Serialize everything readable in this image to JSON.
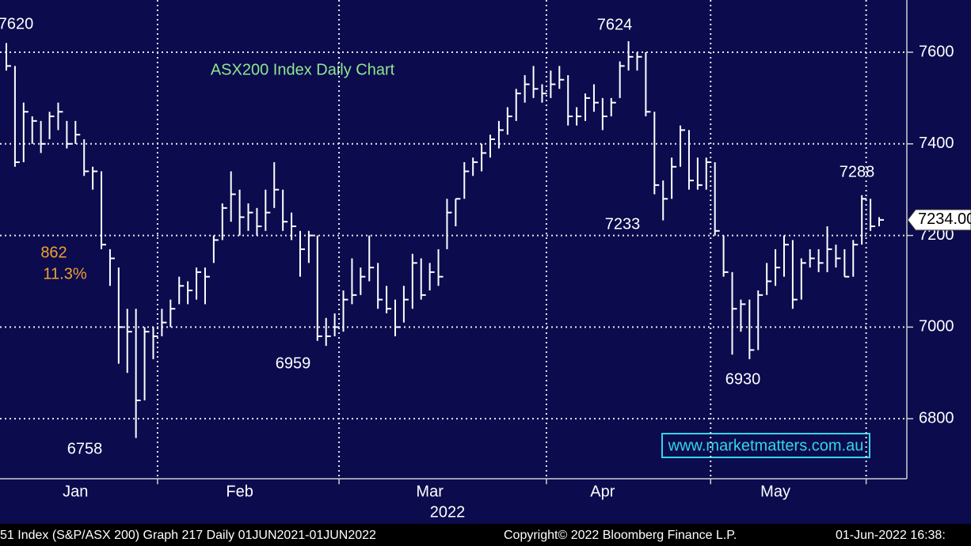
{
  "chart_data": {
    "type": "ohlc",
    "title": "ASX200 Index Daily Chart",
    "color": "#ffffff",
    "background": "#0b0b4e",
    "grid": true,
    "categories": [
      null,
      null,
      null,
      null,
      null,
      null,
      null,
      null,
      "Jan",
      null,
      null,
      null,
      null,
      null,
      null,
      null,
      null,
      null,
      null,
      null,
      null,
      null,
      null,
      null,
      null,
      null,
      null,
      "Feb",
      null,
      null,
      null,
      null,
      null,
      null,
      null,
      null,
      null,
      null,
      null,
      null,
      null,
      null,
      null,
      null,
      null,
      null,
      null,
      null,
      null,
      "Mar",
      null,
      null,
      null,
      null,
      null,
      null,
      null,
      null,
      null,
      null,
      null,
      null,
      null,
      null,
      null,
      null,
      null,
      null,
      null,
      "Apr",
      null,
      null,
      null,
      null,
      null,
      null,
      null,
      null,
      null,
      null,
      null,
      null,
      null,
      null,
      null,
      null,
      null,
      null,
      null,
      "May",
      null,
      null,
      null,
      null,
      null,
      null,
      null,
      null,
      null,
      null,
      null,
      null
    ],
    "x_grid_after": [
      17,
      38,
      62,
      81,
      99
    ],
    "year_label": "2022",
    "high": [
      7620,
      7570,
      7490,
      7460,
      7450,
      7470,
      7490,
      7450,
      7450,
      7410,
      7350,
      7340,
      7170,
      7130,
      7040,
      7040,
      7000,
      7000,
      7040,
      7060,
      7110,
      7100,
      7130,
      7130,
      7200,
      7270,
      7340,
      7300,
      7270,
      7260,
      7300,
      7360,
      7300,
      7250,
      7210,
      7210,
      7200,
      7020,
      7030,
      7080,
      7150,
      7130,
      7200,
      7140,
      7090,
      7060,
      7090,
      7160,
      7150,
      7140,
      7170,
      7280,
      7280,
      7360,
      7370,
      7400,
      7420,
      7450,
      7480,
      7520,
      7550,
      7570,
      7530,
      7560,
      7570,
      7550,
      7480,
      7510,
      7530,
      7500,
      7500,
      7580,
      7624,
      7600,
      7600,
      7470,
      7320,
      7370,
      7440,
      7430,
      7370,
      7370,
      7360,
      7200,
      7120,
      7060,
      7060,
      7080,
      7140,
      7170,
      7200,
      7190,
      7150,
      7170,
      7170,
      7220,
      7180,
      7170,
      7190,
      7288,
      7280,
      7240
    ],
    "low": [
      7560,
      7350,
      7360,
      7400,
      7380,
      7410,
      7430,
      7390,
      7400,
      7330,
      7300,
      7170,
      7090,
      6920,
      6900,
      6758,
      6840,
      6930,
      6980,
      7000,
      7050,
      7050,
      7060,
      7050,
      7140,
      7190,
      7230,
      7200,
      7210,
      7200,
      7210,
      7260,
      7210,
      7190,
      7110,
      7140,
      6970,
      6959,
      6980,
      6990,
      7050,
      7070,
      7100,
      7040,
      7030,
      6980,
      7010,
      7040,
      7060,
      7080,
      7090,
      7170,
      7220,
      7280,
      7330,
      7340,
      7370,
      7390,
      7420,
      7450,
      7490,
      7500,
      7490,
      7500,
      7520,
      7440,
      7440,
      7450,
      7470,
      7430,
      7460,
      7500,
      7560,
      7560,
      7460,
      7290,
      7233,
      7280,
      7350,
      7300,
      7300,
      7300,
      7200,
      7110,
      6940,
      6990,
      6930,
      6950,
      7070,
      7090,
      7110,
      7040,
      7060,
      7130,
      7120,
      7120,
      7130,
      7110,
      7110,
      7180,
      7210,
      7220
    ],
    "close": [
      7570,
      7360,
      7470,
      7450,
      7400,
      7460,
      7470,
      7400,
      7420,
      7340,
      7340,
      7180,
      7150,
      7000,
      6990,
      6840,
      6990,
      6980,
      7010,
      7040,
      7090,
      7080,
      7120,
      7110,
      7190,
      7260,
      7290,
      7240,
      7250,
      7220,
      7250,
      7300,
      7230,
      7220,
      7170,
      7200,
      6980,
      6980,
      7000,
      7060,
      7070,
      7110,
      7130,
      7060,
      7040,
      7000,
      7060,
      7140,
      7070,
      7120,
      7110,
      7250,
      7280,
      7340,
      7360,
      7380,
      7410,
      7430,
      7460,
      7510,
      7530,
      7520,
      7510,
      7530,
      7540,
      7460,
      7460,
      7500,
      7490,
      7460,
      7490,
      7570,
      7590,
      7590,
      7470,
      7310,
      7280,
      7350,
      7430,
      7320,
      7310,
      7360,
      7210,
      7120,
      7040,
      7050,
      6950,
      7070,
      7100,
      7130,
      7180,
      7060,
      7140,
      7150,
      7140,
      7170,
      7150,
      7110,
      7180,
      7280,
      7220,
      7234
    ],
    "ylim": [
      6669,
      7714
    ],
    "yticks": [
      6800,
      7000,
      7200,
      7400,
      7600
    ],
    "last_price": {
      "value": 7234,
      "label": "7234.00"
    },
    "annotations": [
      {
        "text": "7620",
        "color": "#ffffff"
      },
      {
        "text": "7624",
        "color": "#ffffff"
      },
      {
        "text": "7288",
        "color": "#ffffff"
      },
      {
        "text": "7233",
        "color": "#ffffff"
      },
      {
        "text": "6959",
        "color": "#ffffff"
      },
      {
        "text": "6758",
        "color": "#ffffff"
      },
      {
        "text": "6930",
        "color": "#ffffff"
      },
      {
        "text": "862",
        "color": "#f0a030"
      },
      {
        "text": "11.3%",
        "color": "#f0a030"
      }
    ],
    "watermark": "www.marketmatters.com.au",
    "footer": [
      "51 Index (S&P/ASX 200) Graph 217  Daily 01JUN2021-01JUN2022",
      "Copyright© 2022 Bloomberg Finance L.P.",
      "01-Jun-2022 16:38:"
    ]
  }
}
